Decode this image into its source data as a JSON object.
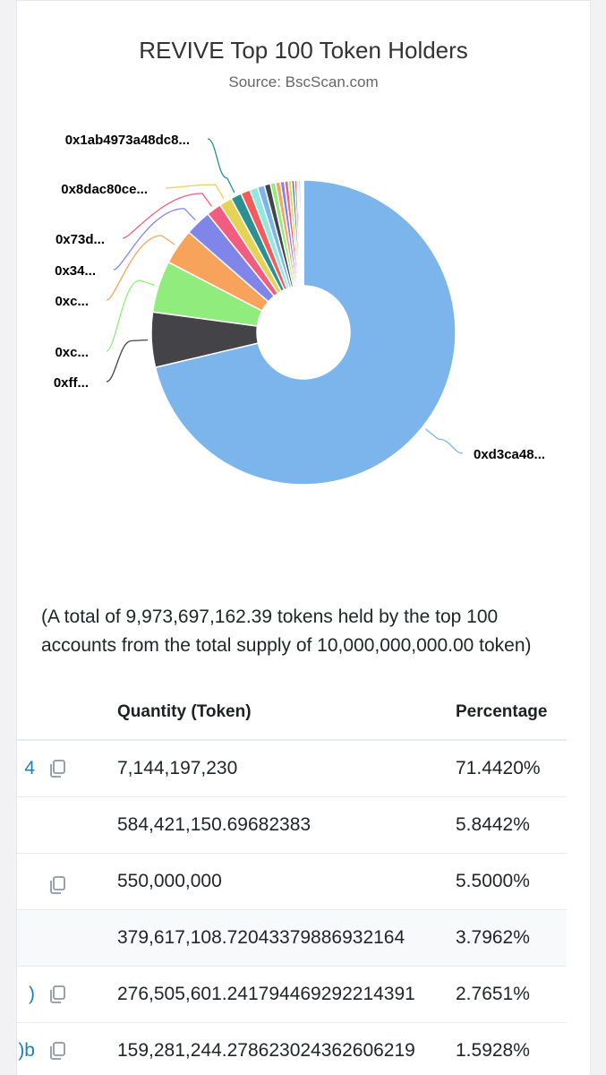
{
  "chart_data": {
    "type": "pie",
    "title": "REVIVE Top 100 Token Holders",
    "subtitle": "Source: BscScan.com",
    "series": [
      {
        "label": "0xd3ca48...",
        "value": 71.442,
        "color": "#7cb5ec"
      },
      {
        "label": "0xff...",
        "value": 5.8442,
        "color": "#434348"
      },
      {
        "label": "0xc...",
        "value": 5.5,
        "color": "#90ed7d"
      },
      {
        "label": "0xc...",
        "value": 3.7962,
        "color": "#f7a35c"
      },
      {
        "label": "0x34...",
        "value": 2.7651,
        "color": "#8085e9"
      },
      {
        "label": "0x73d...",
        "value": 1.5928,
        "color": "#f15c80"
      },
      {
        "label": "0x8dac80ce...",
        "value": 1.35,
        "color": "#e4d354"
      },
      {
        "label": "0x1ab4973a48dc8...",
        "value": 1.15,
        "color": "#2b908f"
      },
      {
        "label": "",
        "value": 1.0,
        "color": "#f45b5b"
      },
      {
        "label": "",
        "value": 0.85,
        "color": "#91e8e1"
      },
      {
        "label": "",
        "value": 0.75,
        "color": "#7cb5ec"
      },
      {
        "label": "",
        "value": 0.65,
        "color": "#434348"
      },
      {
        "label": "",
        "value": 0.55,
        "color": "#90ed7d"
      },
      {
        "label": "",
        "value": 0.5,
        "color": "#f7a35c"
      },
      {
        "label": "",
        "value": 0.45,
        "color": "#8085e9"
      },
      {
        "label": "",
        "value": 0.4,
        "color": "#f15c80"
      },
      {
        "label": "",
        "value": 0.35,
        "color": "#e4d354"
      },
      {
        "label": "",
        "value": 0.3,
        "color": "#2b908f"
      },
      {
        "label": "",
        "value": 0.25,
        "color": "#f45b5b"
      },
      {
        "label": "",
        "value": 0.2,
        "color": "#91e8e1"
      },
      {
        "label": "",
        "value": 0.2,
        "color": "#7cb5ec"
      },
      {
        "label": "",
        "value": 0.15,
        "color": "#434348"
      },
      {
        "label": "",
        "value": 0.15,
        "color": "#90ed7d"
      }
    ]
  },
  "summary": "(A total of 9,973,697,162.39 tokens held by the top 100 accounts from the total supply of 10,000,000,000.00 token)",
  "table": {
    "headers": {
      "address": "",
      "quantity": "Quantity (Token)",
      "percentage": "Percentage"
    },
    "rows": [
      {
        "address": "4",
        "has_copy": true,
        "quantity": "7,144,197,230",
        "percentage": "71.4420%"
      },
      {
        "address": "",
        "has_copy": false,
        "quantity": "584,421,150.69682383",
        "percentage": "5.8442%"
      },
      {
        "address": "",
        "has_copy": true,
        "quantity": "550,000,000",
        "percentage": "5.5000%"
      },
      {
        "address": "",
        "has_copy": false,
        "quantity": "379,617,108.72043379886932164",
        "percentage": "3.7962%"
      },
      {
        "address": ")",
        "has_copy": true,
        "quantity": "276,505,601.241794469292214391",
        "percentage": "2.7651%"
      },
      {
        "address": ")b",
        "has_copy": true,
        "quantity": "159,281,244.278623024362606219",
        "percentage": "1.5928%"
      }
    ]
  },
  "icons": {
    "copy": "copy-icon"
  }
}
